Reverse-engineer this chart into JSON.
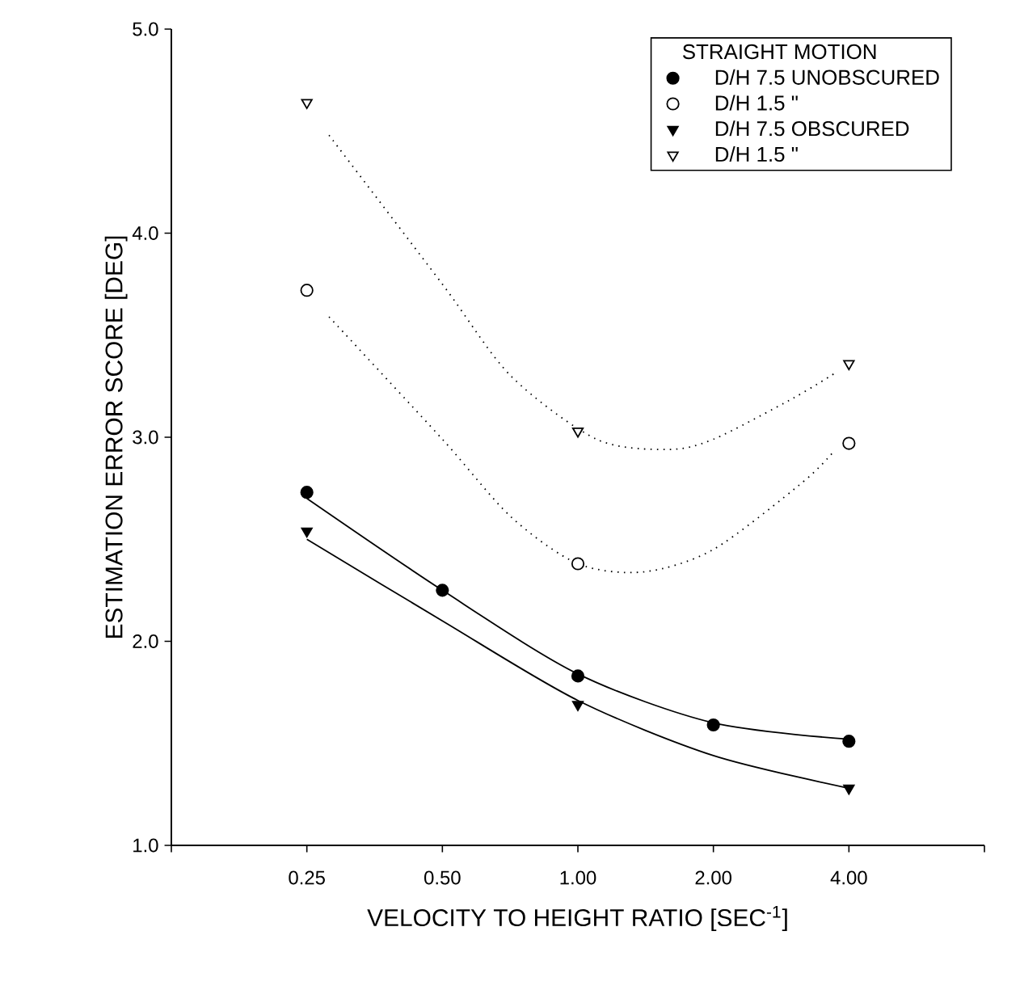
{
  "chart_data": {
    "type": "scatter",
    "xlabel": "VELOCITY TO HEIGHT RATIO [SEC$^{-1}$]",
    "ylabel": "ESTIMATION ERROR SCORE [DEG]",
    "legend_title": "STRAIGHT MOTION",
    "legend": "top right",
    "log": "x",
    "grid": false,
    "xlim": [
      0.125,
      8
    ],
    "ylim": [
      1.0,
      5.0
    ],
    "xticks": [
      {
        "value": 0.125,
        "label": null
      },
      0.25,
      {
        "value": 0.5,
        "label": "0.50"
      },
      {
        "value": 1,
        "label": "1.00"
      },
      {
        "value": 2,
        "label": "2.00"
      },
      {
        "value": 4,
        "label": "4.00"
      },
      {
        "value": 8,
        "label": null
      }
    ],
    "yticks": [
      {
        "value": 1,
        "label": "1.0"
      },
      {
        "value": 2,
        "label": "2.0"
      },
      {
        "value": 3,
        "label": "3.0"
      },
      {
        "value": 4,
        "label": "4.0"
      },
      {
        "value": 5,
        "label": "5.0"
      }
    ],
    "series": [
      {
        "type": "line",
        "color": "#000000",
        "marker": "none",
        "line_style": "solid",
        "x": [
          0.25,
          0.5,
          1,
          2,
          4
        ],
        "values": [
          2.7,
          2.25,
          1.84,
          1.6,
          1.52
        ]
      },
      {
        "type": "line",
        "color": "#000000",
        "marker": "none",
        "line_style": "solid",
        "x": [
          0.25,
          0.5,
          1,
          2,
          4
        ],
        "values": [
          2.5,
          2.1,
          1.71,
          1.44,
          1.28
        ]
      },
      {
        "type": "line",
        "color": "#000000",
        "marker": "none",
        "line_style": "dotted",
        "x": [
          0.28,
          0.5,
          0.71,
          1,
          1.4,
          2,
          3.16,
          3.7
        ],
        "values": [
          3.59,
          2.99,
          2.61,
          2.38,
          2.34,
          2.45,
          2.78,
          2.93
        ]
      },
      {
        "type": "line",
        "color": "#000000",
        "marker": "none",
        "line_style": "dotted",
        "x": [
          0.28,
          0.5,
          0.71,
          1.1,
          1.58,
          2,
          3,
          3.7
        ],
        "values": [
          4.48,
          3.75,
          3.3,
          2.99,
          2.94,
          2.99,
          3.19,
          3.31
        ]
      },
      {
        "name": "D/H 7.5 UNOBSCURED",
        "color": "#000000",
        "marker": "circle",
        "x": [
          0.25,
          0.5,
          1,
          2,
          4
        ],
        "values": [
          2.73,
          2.25,
          1.83,
          1.59,
          1.51
        ]
      },
      {
        "name": "D/H 1.5 \"",
        "color": "#000000",
        "marker": "circle-open",
        "x": [
          0.25,
          1,
          4
        ],
        "values": [
          3.72,
          2.38,
          2.97
        ]
      },
      {
        "name": "D/H 7.5 OBSCURED",
        "color": "#000000",
        "marker": "triangle-down",
        "x": [
          0.25,
          1,
          4
        ],
        "values": [
          2.54,
          1.69,
          1.28
        ]
      },
      {
        "name": "D/H 1.5 \"",
        "color": "#000000",
        "marker": "triangle-down-open",
        "x": [
          0.25,
          1,
          4
        ],
        "values": [
          4.64,
          3.03,
          3.36
        ]
      }
    ]
  }
}
